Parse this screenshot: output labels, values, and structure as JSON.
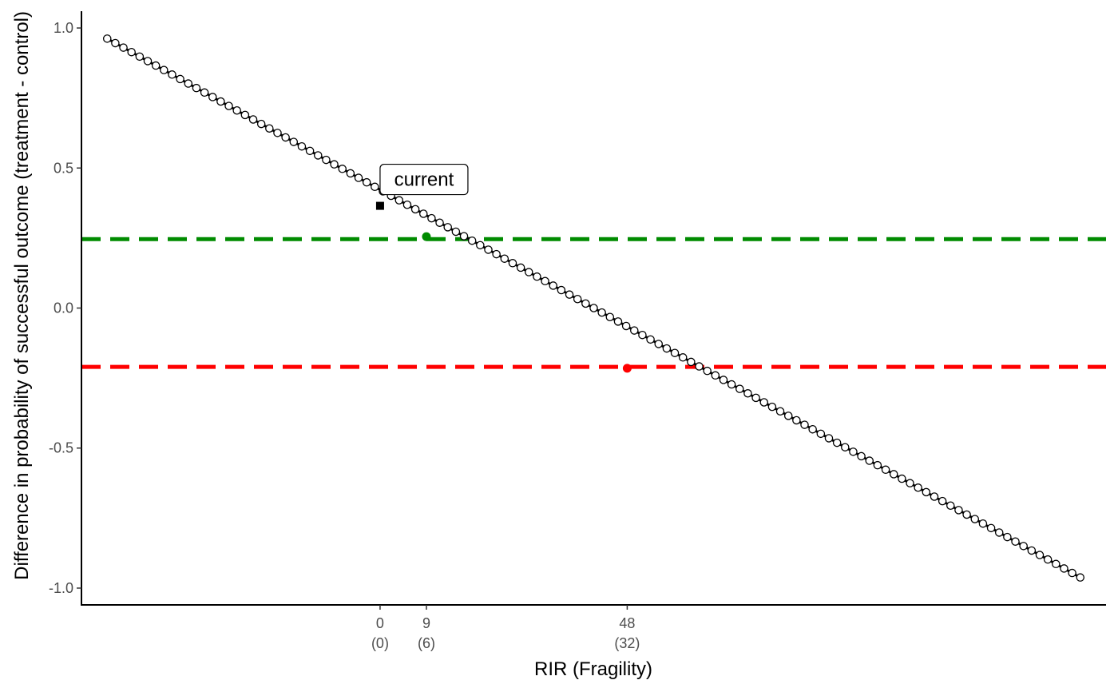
{
  "chart_data": {
    "type": "scatter",
    "xlabel": "RIR (Fragility)",
    "ylabel": "Difference in probability of successful outcome (treatment - control)",
    "xlim": [
      -58,
      141
    ],
    "ylim": [
      -1.06,
      1.06
    ],
    "y_ticks": [
      {
        "value": 1.0,
        "label": "1.0"
      },
      {
        "value": 0.5,
        "label": "0.5"
      },
      {
        "value": 0.0,
        "label": "0.0"
      },
      {
        "value": -0.5,
        "label": "-0.5"
      },
      {
        "value": -1.0,
        "label": "-1.0"
      }
    ],
    "x_ticks": [
      {
        "value": 0,
        "label": "0",
        "sublabel": "(0)"
      },
      {
        "value": 9,
        "label": "9",
        "sublabel": "(6)"
      },
      {
        "value": 48,
        "label": "48",
        "sublabel": "(32)"
      }
    ],
    "points": {
      "x_start": -53,
      "x_end": 136,
      "count": 121,
      "y_start": 0.962,
      "y_end": -0.962,
      "fill": "#ffffff",
      "stroke": "#000000"
    },
    "current_point": {
      "x": 0,
      "y": 0.365,
      "label": "current",
      "color": "#000000"
    },
    "threshold_lines": [
      {
        "y": 0.246,
        "color": "#008b00"
      },
      {
        "y": -0.21,
        "color": "#ff0000"
      }
    ],
    "highlight_points": [
      {
        "x": 9,
        "y": 0.255,
        "color": "#008b00"
      },
      {
        "x": 48,
        "y": -0.215,
        "color": "#ff0000"
      }
    ],
    "grid": false,
    "legend": "none"
  }
}
